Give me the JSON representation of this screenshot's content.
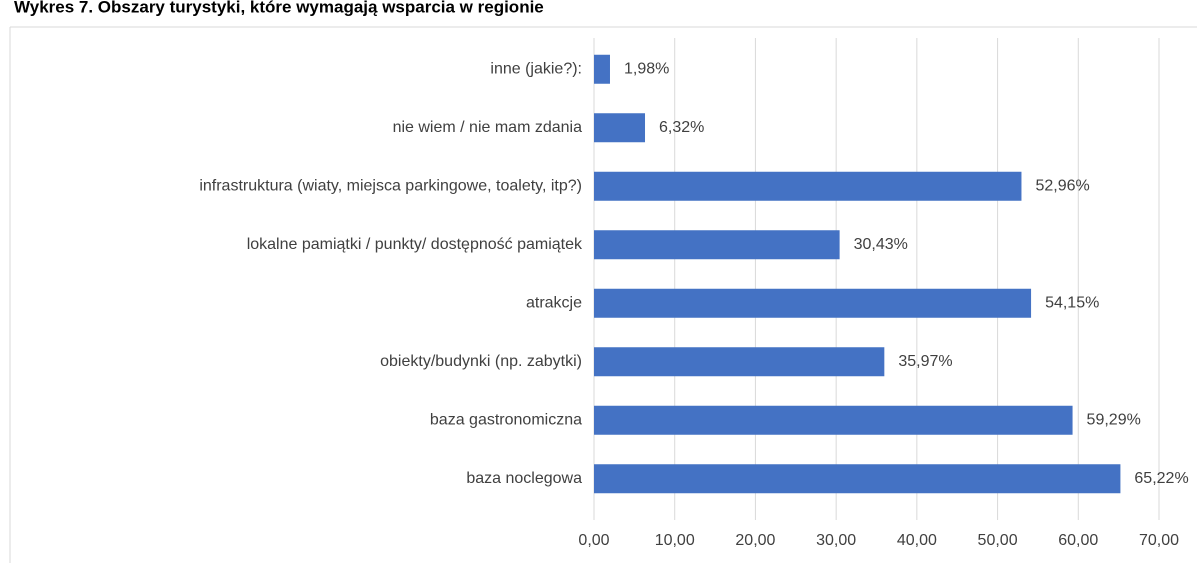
{
  "chart_data": {
    "type": "bar",
    "orientation": "horizontal",
    "title": "Wykres 7. Obszary turystyki, które wymagają wsparcia w regionie",
    "categories": [
      "inne (jakie?):",
      "nie wiem / nie mam zdania",
      "infrastruktura (wiaty, miejsca parkingowe, toalety, itp?)",
      "lokalne pamiątki / punkty/ dostępność pamiątek",
      "atrakcje",
      "obiekty/budynki (np. zabytki)",
      "baza gastronomiczna",
      "baza noclegowa"
    ],
    "values": [
      1.98,
      6.32,
      52.96,
      30.43,
      54.15,
      35.97,
      59.29,
      65.22
    ],
    "value_labels": [
      "1,98%",
      "6,32%",
      "52,96%",
      "30,43%",
      "54,15%",
      "35,97%",
      "59,29%",
      "65,22%"
    ],
    "color": "#4472c4",
    "xlim": [
      0,
      70
    ],
    "xticks": [
      {
        "value": 0,
        "label": "0,00"
      },
      {
        "value": 10,
        "label": "10,00"
      },
      {
        "value": 20,
        "label": "20,00"
      },
      {
        "value": 30,
        "label": "30,00"
      },
      {
        "value": 40,
        "label": "40,00"
      },
      {
        "value": 50,
        "label": "50,00"
      },
      {
        "value": 60,
        "label": "60,00"
      },
      {
        "value": 70,
        "label": "70,00"
      }
    ],
    "grid": true
  }
}
